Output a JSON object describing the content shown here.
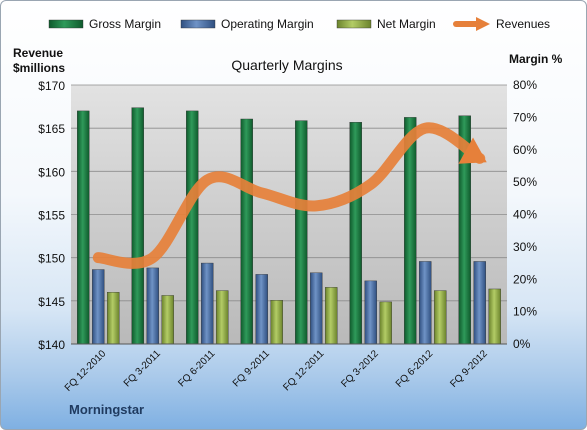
{
  "chart_data": {
    "type": "bar",
    "title": "Quarterly Margins",
    "left_axis_title_line1": "Revenue",
    "left_axis_title_line2": "$millions",
    "right_axis_title": "Margin %",
    "source": "Morningstar",
    "categories": [
      "FQ 12-2010",
      "FQ 3-2011",
      "FQ 6-2011",
      "FQ 9-2011",
      "FQ 12-2011",
      "FQ 3-2012",
      "FQ 6-2012",
      "FQ 9-2012"
    ],
    "left_axis": {
      "min": 140,
      "max": 170,
      "step": 5,
      "tick_labels": [
        "$140",
        "$145",
        "$150",
        "$155",
        "$160",
        "$165",
        "$170"
      ]
    },
    "right_axis": {
      "min": 0,
      "max": 80,
      "step": 10,
      "tick_labels": [
        "0%",
        "10%",
        "20%",
        "30%",
        "40%",
        "50%",
        "60%",
        "70%",
        "80%"
      ]
    },
    "grid": true,
    "legend_position": "top",
    "series": [
      {
        "name": "Gross Margin",
        "kind": "bar",
        "axis": "right",
        "color": "#1e7b45",
        "values": [
          72,
          73,
          72,
          69.5,
          69,
          68.5,
          70,
          70.5
        ]
      },
      {
        "name": "Operating Margin",
        "kind": "bar",
        "axis": "right",
        "color": "#4a6fa5",
        "values": [
          23,
          23.5,
          25,
          21.5,
          22,
          19.5,
          25.5,
          25.5
        ]
      },
      {
        "name": "Net Margin",
        "kind": "bar",
        "axis": "right",
        "color": "#93ae46",
        "values": [
          16,
          15,
          16.5,
          13.5,
          17.5,
          13,
          16.5,
          17
        ]
      },
      {
        "name": "Revenues",
        "kind": "line",
        "axis": "left",
        "color": "#e6803a",
        "values": [
          150.0,
          150.0,
          159.0,
          157.5,
          156.0,
          158.5,
          165.0,
          161.5
        ]
      }
    ]
  }
}
